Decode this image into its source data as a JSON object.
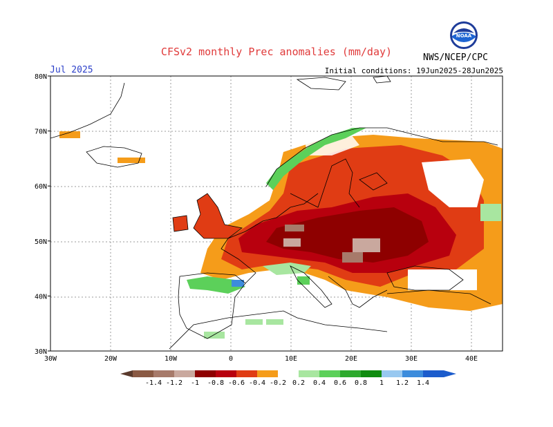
{
  "header": {
    "title": "CFSv2 monthly Prec anomalies (mm/day)",
    "month": "Jul 2025",
    "initial_conditions": "Initial conditions: 19Jun2025-28Jun2025",
    "agency": "NWS/NCEP/CPC",
    "logo_text": "NOAA"
  },
  "map": {
    "lon_range": [
      -30,
      45
    ],
    "lat_range": [
      30,
      80
    ],
    "lat_labels": [
      "30N",
      "40N",
      "50N",
      "60N",
      "70N",
      "80N"
    ],
    "lon_labels": [
      "30W",
      "20W",
      "10W",
      "0",
      "10E",
      "20E",
      "30E",
      "40E"
    ]
  },
  "colorbar": {
    "labels": [
      "-1.4",
      "-1.2",
      "-1",
      "-0.8",
      "-0.6",
      "-0.4",
      "-0.2",
      "0.2",
      "0.4",
      "0.6",
      "0.8",
      "1",
      "1.2",
      "1.4"
    ],
    "colors": [
      "#8a5a44",
      "#a77a6a",
      "#c9a89e",
      "#8e0000",
      "#b8000e",
      "#e03c14",
      "#f59c1a",
      "#ffffff",
      "#a8e6a0",
      "#5cd05a",
      "#2eaa2e",
      "#108c10",
      "#98c8f0",
      "#3c8cdc",
      "#1c5ccc"
    ]
  },
  "regions": [
    {
      "name": "iberia-north",
      "value": 0.6
    },
    {
      "name": "france",
      "value": -0.6
    },
    {
      "name": "germany-poland",
      "value": -0.8
    },
    {
      "name": "central-europe",
      "value": -1.0
    },
    {
      "name": "balkans",
      "value": -0.6
    },
    {
      "name": "scandinavia-south",
      "value": -0.6
    },
    {
      "name": "norway-coast",
      "value": 0.6
    },
    {
      "name": "western-russia",
      "value": -0.4
    },
    {
      "name": "uk",
      "value": -0.6
    },
    {
      "name": "turkey",
      "value": -0.4
    },
    {
      "name": "italy-north",
      "value": 0.4
    },
    {
      "name": "iceland",
      "value": -0.4
    }
  ]
}
